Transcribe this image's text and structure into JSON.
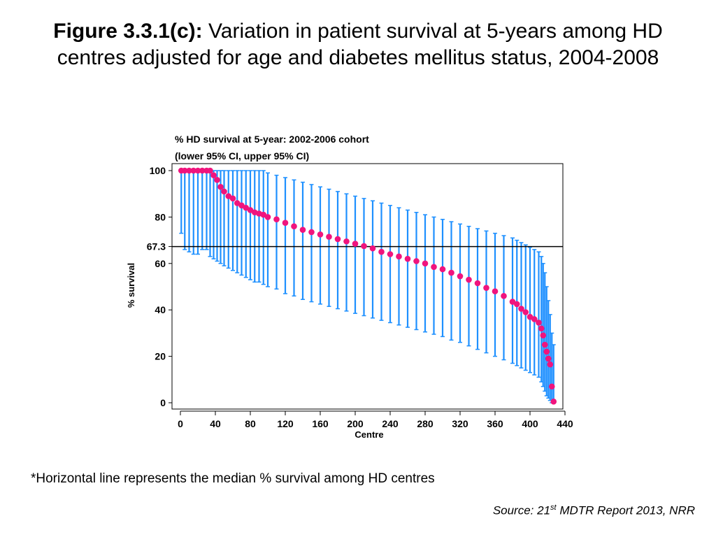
{
  "title": {
    "label": "Figure 3.3.1(c):",
    "text": "Variation in patient survival at 5-years among HD centres adjusted for age and diabetes mellitus status, 2004-2008"
  },
  "footnote": "*Horizontal line represents the median % survival among HD centres",
  "source": {
    "prefix": "Source: 21",
    "superscript": "st",
    "suffix": " MDTR Report 2013, NRR"
  },
  "chart_data": {
    "type": "scatter",
    "title_lines": [
      "% HD survival at 5-year: 2002-2006 cohort",
      "(lower 95% CI, upper 95% CI)"
    ],
    "xlabel": "Centre",
    "ylabel": "% survival",
    "xlim": [
      0,
      440
    ],
    "ylim": [
      0,
      100
    ],
    "xticks": [
      0,
      40,
      80,
      120,
      160,
      200,
      240,
      280,
      320,
      360,
      400,
      440
    ],
    "yticks": [
      0,
      20,
      40,
      60,
      80,
      100
    ],
    "reference_line": {
      "value": 67.3,
      "label": "67.3"
    },
    "grid": false,
    "colors": {
      "point": "#f0147d",
      "error_bar": "#1e90ff",
      "line": "#000000"
    },
    "series": [
      {
        "x": [
          1,
          5,
          10,
          15,
          20,
          25,
          30,
          34,
          38,
          42,
          46,
          50,
          55,
          60,
          65,
          70,
          75,
          80,
          85,
          90,
          95,
          100,
          110,
          120,
          130,
          140,
          150,
          160,
          170,
          180,
          190,
          200,
          210,
          220,
          230,
          240,
          250,
          260,
          270,
          280,
          290,
          300,
          310,
          320,
          330,
          340,
          350,
          360,
          370,
          380,
          385,
          390,
          395,
          400,
          405,
          410,
          413,
          415,
          417,
          419,
          421,
          423,
          425,
          427
        ],
        "y": [
          100,
          100,
          100,
          100,
          100,
          100,
          100,
          100,
          98,
          96,
          93,
          91,
          89,
          88,
          86,
          85,
          84,
          83,
          82,
          81.5,
          81,
          80,
          79,
          77.5,
          76,
          74.5,
          73.5,
          72.5,
          71.5,
          70.5,
          69.5,
          68.5,
          67.5,
          66.5,
          65,
          64,
          63,
          62,
          61,
          60,
          58.5,
          57.5,
          56,
          54.5,
          53,
          51.5,
          49.5,
          48,
          46,
          43.5,
          42.5,
          40.5,
          39,
          37,
          36,
          34.5,
          32,
          29,
          25,
          22,
          19,
          16.5,
          7,
          0.5
        ],
        "lower": [
          73,
          66,
          65,
          64,
          64,
          66,
          66,
          63,
          62,
          61,
          60,
          59,
          58,
          57,
          56,
          55,
          54,
          53,
          52,
          52,
          51,
          50,
          49,
          47,
          46,
          44.5,
          43.5,
          42.5,
          41.5,
          40.5,
          39.5,
          38.5,
          37.5,
          36.5,
          35.5,
          34.5,
          33.5,
          32.5,
          31.5,
          30.5,
          29.5,
          28.5,
          27,
          26,
          24.5,
          23,
          21.5,
          20,
          18.5,
          17,
          16,
          15,
          14,
          13,
          12,
          11,
          9,
          7,
          5,
          3,
          2,
          1,
          0,
          0
        ],
        "upper": [
          100,
          100,
          100,
          100,
          100,
          100,
          100,
          100,
          100,
          100,
          100,
          100,
          100,
          100,
          100,
          100,
          100,
          100,
          100,
          100,
          100,
          99,
          98,
          97,
          96,
          95,
          94,
          93,
          92,
          91,
          90,
          89,
          88,
          87,
          86,
          85,
          84,
          83,
          82,
          81,
          80,
          79,
          78,
          77,
          76,
          75,
          74,
          73,
          72,
          71,
          70,
          69,
          68,
          67,
          66,
          65,
          63,
          60,
          56,
          50,
          44,
          38,
          30,
          25
        ]
      }
    ]
  }
}
